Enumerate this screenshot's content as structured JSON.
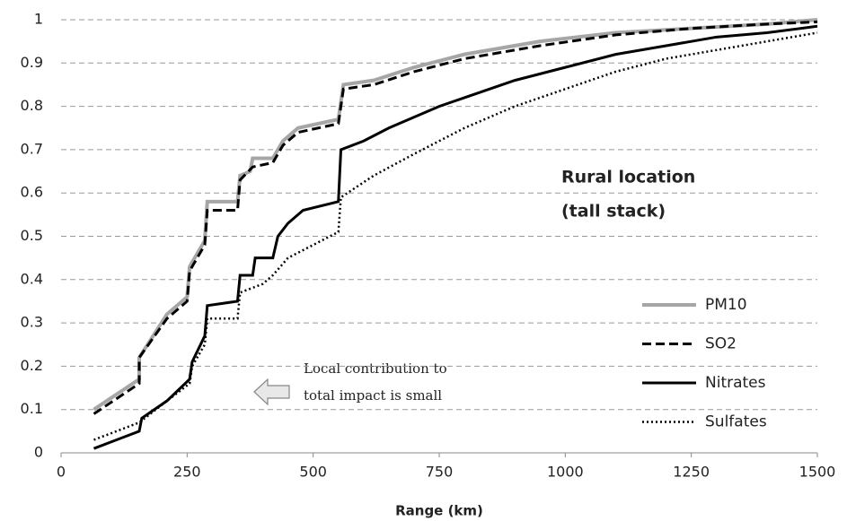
{
  "chart_data": {
    "type": "line",
    "xlabel": "Range (km)",
    "annotations": [
      "Rural location",
      "(tall stack)",
      "Local contribution  to",
      "total impact is small"
    ],
    "xlim": [
      0,
      1500
    ],
    "xticks": [
      0,
      250,
      500,
      750,
      1000,
      1250,
      1500
    ],
    "ylim": [
      0,
      1
    ],
    "yticks": [
      0,
      0.1,
      0.2,
      0.3,
      0.4,
      0.5,
      0.6,
      0.7,
      0.8,
      0.9,
      1
    ],
    "grid": true,
    "legend": "lower right",
    "series": [
      {
        "name": "PM10",
        "color": "#a6a6a6",
        "linestyle": "solid",
        "x": [
          65,
          155,
          155,
          210,
          250,
          255,
          285,
          290,
          350,
          355,
          375,
          380,
          420,
          440,
          470,
          550,
          560,
          620,
          700,
          800,
          950,
          1100,
          1250,
          1400,
          1500
        ],
        "values": [
          0.1,
          0.17,
          0.22,
          0.32,
          0.36,
          0.43,
          0.49,
          0.58,
          0.58,
          0.64,
          0.65,
          0.68,
          0.68,
          0.72,
          0.75,
          0.77,
          0.85,
          0.86,
          0.89,
          0.92,
          0.95,
          0.97,
          0.98,
          0.99,
          1.0
        ]
      },
      {
        "name": "SO2",
        "color": "#000000",
        "linestyle": "dashed",
        "x": [
          65,
          155,
          155,
          210,
          250,
          255,
          285,
          290,
          350,
          355,
          380,
          420,
          440,
          470,
          550,
          560,
          620,
          700,
          800,
          950,
          1100,
          1250,
          1400,
          1500
        ],
        "values": [
          0.09,
          0.16,
          0.22,
          0.31,
          0.35,
          0.42,
          0.48,
          0.56,
          0.56,
          0.63,
          0.66,
          0.67,
          0.71,
          0.74,
          0.76,
          0.84,
          0.85,
          0.88,
          0.91,
          0.94,
          0.965,
          0.98,
          0.99,
          0.995
        ]
      },
      {
        "name": "Nitrates",
        "color": "#000000",
        "linestyle": "solid",
        "x": [
          65,
          155,
          160,
          210,
          255,
          260,
          285,
          290,
          350,
          355,
          380,
          385,
          420,
          430,
          450,
          480,
          550,
          555,
          600,
          650,
          750,
          800,
          900,
          1000,
          1100,
          1200,
          1300,
          1400,
          1500
        ],
        "values": [
          0.01,
          0.05,
          0.08,
          0.12,
          0.17,
          0.21,
          0.27,
          0.34,
          0.35,
          0.41,
          0.41,
          0.45,
          0.45,
          0.5,
          0.53,
          0.56,
          0.58,
          0.7,
          0.72,
          0.75,
          0.8,
          0.82,
          0.86,
          0.89,
          0.92,
          0.94,
          0.96,
          0.97,
          0.985
        ]
      },
      {
        "name": "Sulfates",
        "color": "#000000",
        "linestyle": "dotted",
        "x": [
          65,
          155,
          210,
          255,
          260,
          285,
          290,
          350,
          355,
          400,
          420,
          450,
          550,
          555,
          620,
          700,
          800,
          900,
          1000,
          1100,
          1200,
          1300,
          1400,
          1500
        ],
        "values": [
          0.03,
          0.07,
          0.12,
          0.16,
          0.2,
          0.25,
          0.31,
          0.31,
          0.37,
          0.39,
          0.41,
          0.45,
          0.51,
          0.59,
          0.64,
          0.69,
          0.75,
          0.8,
          0.84,
          0.88,
          0.91,
          0.93,
          0.95,
          0.97
        ]
      }
    ]
  }
}
